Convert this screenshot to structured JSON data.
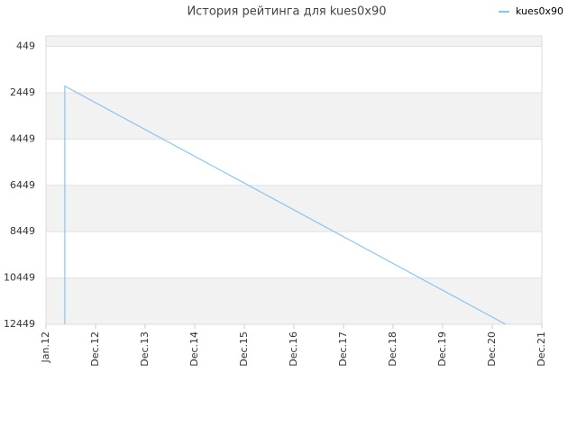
{
  "chart_data": {
    "type": "line",
    "title": "История рейтинга для kues0x90",
    "x": [
      0.38,
      0.38,
      9.27
    ],
    "series": [
      {
        "name": "kues0x90",
        "color": "#88c4f2",
        "values": [
          12449,
          2164,
          12449
        ]
      }
    ],
    "xlim": [
      0,
      10
    ],
    "xticks": [
      {
        "value": 0,
        "label": "Jan.12"
      },
      {
        "value": 1,
        "label": "Dec.12"
      },
      {
        "value": 2,
        "label": "Dec.13"
      },
      {
        "value": 3,
        "label": "Dec.14"
      },
      {
        "value": 4,
        "label": "Dec.15"
      },
      {
        "value": 5,
        "label": "Dec.16"
      },
      {
        "value": 6,
        "label": "Dec.17"
      },
      {
        "value": 7,
        "label": "Dec.18"
      },
      {
        "value": 8,
        "label": "Dec.19"
      },
      {
        "value": 9,
        "label": "Dec.20"
      },
      {
        "value": 10,
        "label": "Dec.21"
      }
    ],
    "ylim": [
      12449,
      0
    ],
    "yticks": [
      449,
      2449,
      4449,
      6449,
      8449,
      10449,
      12449
    ],
    "grid": true,
    "legend": "top-right"
  }
}
